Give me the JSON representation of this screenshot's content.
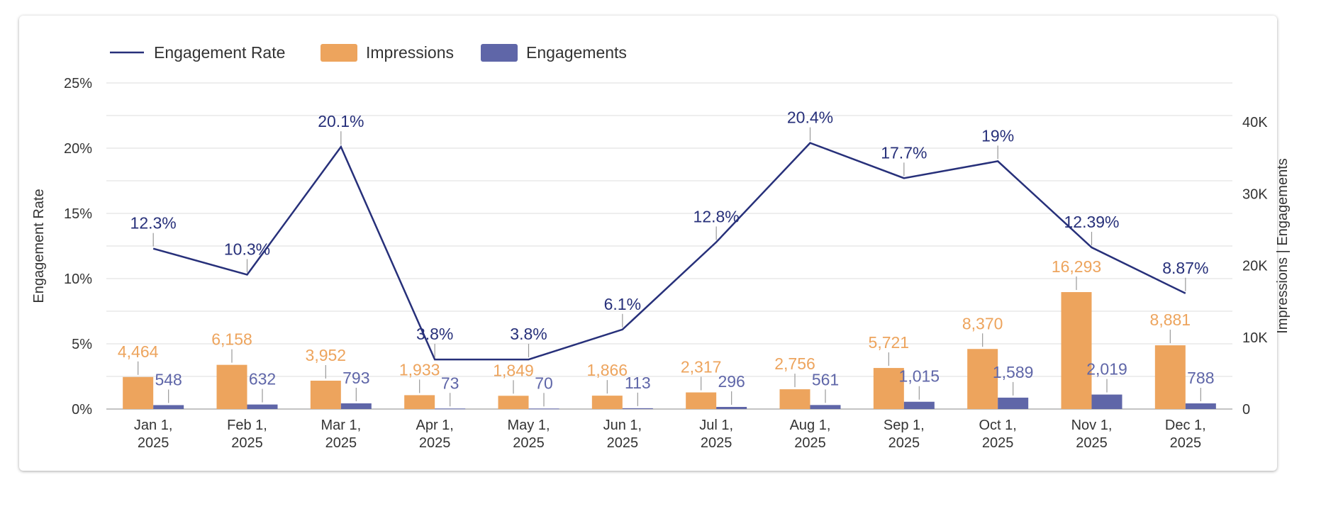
{
  "chart_data": {
    "type": "bar",
    "title": "",
    "categories": [
      [
        "Jan 1,",
        "2025"
      ],
      [
        "Feb 1,",
        "2025"
      ],
      [
        "Mar 1,",
        "2025"
      ],
      [
        "Apr 1,",
        "2025"
      ],
      [
        "May 1,",
        "2025"
      ],
      [
        "Jun 1,",
        "2025"
      ],
      [
        "Jul 1,",
        "2025"
      ],
      [
        "Aug 1,",
        "2025"
      ],
      [
        "Sep 1,",
        "2025"
      ],
      [
        "Oct 1,",
        "2025"
      ],
      [
        "Nov 1,",
        "2025"
      ],
      [
        "Dec 1,",
        "2025"
      ]
    ],
    "series": [
      {
        "name": "Engagement Rate",
        "type": "line",
        "axis": "left",
        "color": "#27307a",
        "values": [
          12.3,
          10.3,
          20.1,
          3.8,
          3.8,
          6.1,
          12.8,
          20.4,
          17.7,
          19,
          12.39,
          8.87
        ],
        "labels": [
          "12.3%",
          "10.3%",
          "20.1%",
          "3.8%",
          "3.8%",
          "6.1%",
          "12.8%",
          "20.4%",
          "17.7%",
          "19%",
          "12.39%",
          "8.87%"
        ]
      },
      {
        "name": "Impressions",
        "type": "bar",
        "axis": "right",
        "color": "#eda45d",
        "values": [
          4464,
          6158,
          3952,
          1933,
          1849,
          1866,
          2317,
          2756,
          5721,
          8370,
          16293,
          8881
        ],
        "labels": [
          "4,464",
          "6,158",
          "3,952",
          "1,933",
          "1,849",
          "1,866",
          "2,317",
          "2,756",
          "5,721",
          "8,370",
          "16,293",
          "8,881"
        ]
      },
      {
        "name": "Engagements",
        "type": "bar",
        "axis": "right",
        "color": "#5f66a8",
        "values": [
          548,
          632,
          793,
          73,
          70,
          113,
          296,
          561,
          1015,
          1589,
          2019,
          788
        ],
        "labels": [
          "548",
          "632",
          "793",
          "73",
          "70",
          "113",
          "296",
          "561",
          "1,015",
          "1,589",
          "2,019",
          "788"
        ]
      }
    ],
    "y_left": {
      "label": "Engagement Rate",
      "range": [
        0,
        25
      ],
      "ticks": [
        "0%",
        "5%",
        "10%",
        "15%",
        "20%",
        "25%"
      ]
    },
    "y_right": {
      "label": "Impressions | Engagements",
      "range": [
        0,
        45000
      ],
      "ticks": [
        "0",
        "10K",
        "20K",
        "30K",
        "40K"
      ]
    },
    "legend_position": "top-left",
    "grid": true
  }
}
